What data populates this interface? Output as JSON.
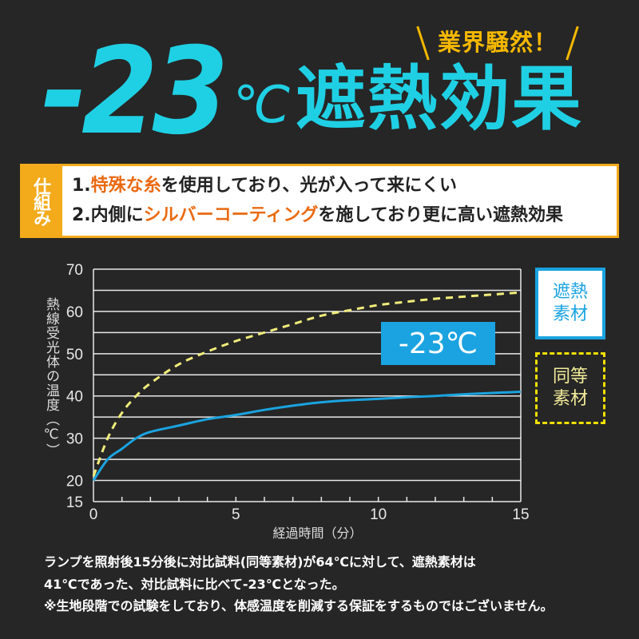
{
  "header": {
    "badge": "業界騒然！",
    "headline_number": "-23",
    "headline_unit": "℃",
    "headline_text": "遮熱効果"
  },
  "mechanism": {
    "label": "仕組み",
    "line1": {
      "prefix": "1.",
      "highlight": "特殊な糸",
      "rest": "を使用しており、光が入って来にくい"
    },
    "line2": {
      "prefix": "2.内側に",
      "highlight": "シルバーコーティング",
      "rest": "を施しており更に高い遮熱効果"
    }
  },
  "chart_data": {
    "type": "line",
    "xlabel": "経過時間（分）",
    "ylabel": "熱線受光体の温度（℃）",
    "xlim": [
      0,
      15
    ],
    "ylim": [
      15,
      70
    ],
    "x_ticks": [
      0,
      5,
      10,
      15
    ],
    "y_ticks": [
      15,
      20,
      30,
      40,
      50,
      60,
      70
    ],
    "grid": true,
    "callout": "-23℃",
    "series": [
      {
        "name": "遮熱素材",
        "legend_line1": "遮熱",
        "legend_line2": "素材",
        "color": "#1aa3e0",
        "style": "solid",
        "x": [
          0,
          0.5,
          1,
          1.5,
          2,
          3,
          4,
          5,
          6,
          7,
          8,
          9,
          10,
          11,
          12,
          13,
          14,
          15
        ],
        "y": [
          20,
          25,
          27.5,
          30,
          31.5,
          33,
          34.5,
          35.5,
          36.7,
          37.7,
          38.5,
          39,
          39.3,
          39.7,
          40,
          40.4,
          40.7,
          41
        ]
      },
      {
        "name": "同等素材",
        "legend_line1": "同等",
        "legend_line2": "素材",
        "color": "#f0ec7a",
        "style": "dashed",
        "x": [
          0,
          0.5,
          1,
          1.5,
          2,
          3,
          4,
          5,
          6,
          7,
          8,
          9,
          10,
          11,
          12,
          13,
          14,
          15
        ],
        "y": [
          21,
          30,
          36,
          40,
          43,
          47.5,
          50.5,
          53,
          55,
          57,
          59,
          60.3,
          61.5,
          62.3,
          63,
          63.5,
          64,
          64.5
        ]
      }
    ]
  },
  "notes": [
    "ランプを照射後15分後に対比試料(同等素材)が64℃に対して、遮熱素材は",
    "41℃であった、対比試料に比べて-23℃となった。",
    "※生地段階での試験をしており、体感温度を削減する保証をするものではございません。"
  ]
}
